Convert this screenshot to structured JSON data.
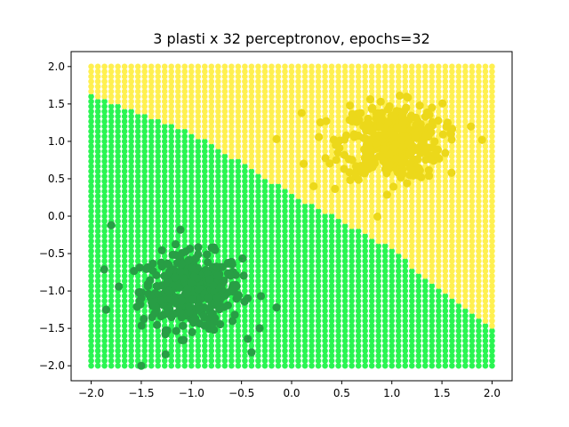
{
  "chart_data": {
    "type": "scatter",
    "title": "3 plasti x 32 perceptronov, epochs=32",
    "xlabel": "",
    "ylabel": "",
    "xlim": [
      -2.2,
      2.2
    ],
    "ylim": [
      -2.2,
      2.2
    ],
    "xticks": [
      -2.0,
      -1.5,
      -1.0,
      -0.5,
      0.0,
      0.5,
      1.0,
      1.5,
      2.0
    ],
    "yticks": [
      -2.0,
      -1.5,
      -1.0,
      -0.5,
      0.0,
      0.5,
      1.0,
      1.5,
      2.0
    ],
    "xtick_labels": [
      "−2.0",
      "−1.5",
      "−1.0",
      "−0.5",
      "0.0",
      "0.5",
      "1.0",
      "1.5",
      "2.0"
    ],
    "ytick_labels": [
      "−2.0",
      "−1.5",
      "−1.0",
      "−0.5",
      "0.0",
      "0.5",
      "1.0",
      "1.5",
      "2.0"
    ],
    "grid": false,
    "legend": "none",
    "decision_region": {
      "x_range": [
        -2.0,
        2.0
      ],
      "y_range": [
        -2.0,
        2.0
      ],
      "steps": 61,
      "boundary_points": [
        [
          -2.0,
          1.62
        ],
        [
          -1.0,
          1.12
        ],
        [
          0.0,
          0.3
        ],
        [
          1.0,
          -0.45
        ],
        [
          1.5,
          -1.0
        ],
        [
          2.0,
          -1.5
        ]
      ],
      "class_below_color": "#2af552",
      "class_above_color": "#fff050"
    },
    "series": [
      {
        "cluster_center": [
          -1.0,
          -1.0
        ],
        "spread": 0.25,
        "count": 400,
        "color": "#289e45"
      },
      {
        "cluster_center": [
          1.0,
          1.0
        ],
        "spread": 0.25,
        "count": 400,
        "color": "#ecd81a"
      }
    ],
    "outliers": [
      {
        "x": 0.1,
        "y": 1.38,
        "class": 1
      },
      {
        "x": -0.15,
        "y": 1.03,
        "class": 1
      },
      {
        "x": 0.12,
        "y": 0.7,
        "class": 1
      },
      {
        "x": 0.22,
        "y": 0.4,
        "class": 1
      },
      {
        "x": 1.9,
        "y": 1.02,
        "class": 1
      },
      {
        "x": -1.8,
        "y": -0.12,
        "class": 0
      },
      {
        "x": -1.5,
        "y": -2.0,
        "class": 0
      },
      {
        "x": -1.85,
        "y": -1.25,
        "class": 0
      },
      {
        "x": -0.15,
        "y": -1.22,
        "class": 0
      },
      {
        "x": -0.4,
        "y": -1.82,
        "class": 0
      }
    ]
  }
}
